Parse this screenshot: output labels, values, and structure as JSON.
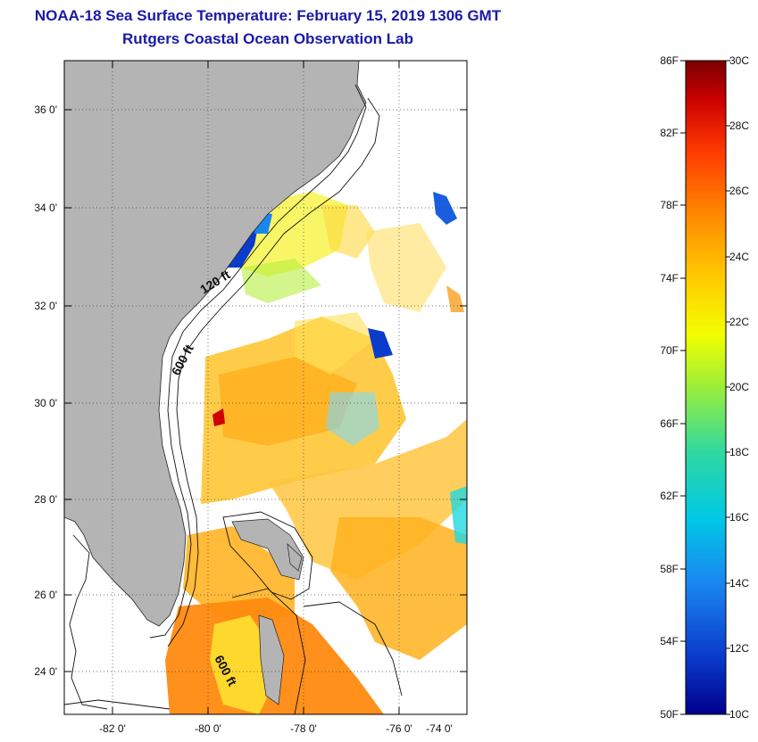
{
  "header": {
    "title": "NOAA-18 Sea Surface Temperature:  February 15, 2019 1306 GMT",
    "subtitle": "Rutgers Coastal Ocean Observation Lab"
  },
  "map": {
    "lat_labels": [
      "36 0'",
      "34 0'",
      "32 0'",
      "30 0'",
      "28 0'",
      "26 0'",
      "24 0'"
    ],
    "lon_labels": [
      "-82 0'",
      "-80 0'",
      "-78 0'",
      "-76 0'",
      "-74 0'"
    ],
    "contour_labels": {
      "shelf_120": "120 ft",
      "shelf_600": "600 ft",
      "bahamas_600": "600 ft"
    },
    "land_color": "#b4b4b4"
  },
  "colorbar": {
    "fahrenheit_labels": [
      "86F",
      "82F",
      "78F",
      "74F",
      "70F",
      "66F",
      "62F",
      "58F",
      "54F",
      "50F"
    ],
    "celsius_labels": [
      "30C",
      "28C",
      "26C",
      "24C",
      "22C",
      "20C",
      "18C",
      "16C",
      "14C",
      "12C",
      "10C"
    ],
    "colors": [
      "#7a0000",
      "#cc0000",
      "#ff3b00",
      "#ff8c00",
      "#ffd000",
      "#f2ff00",
      "#9aee3a",
      "#2fd8a0",
      "#00c8e6",
      "#1a86f0",
      "#0a3ccc",
      "#00008c"
    ]
  }
}
